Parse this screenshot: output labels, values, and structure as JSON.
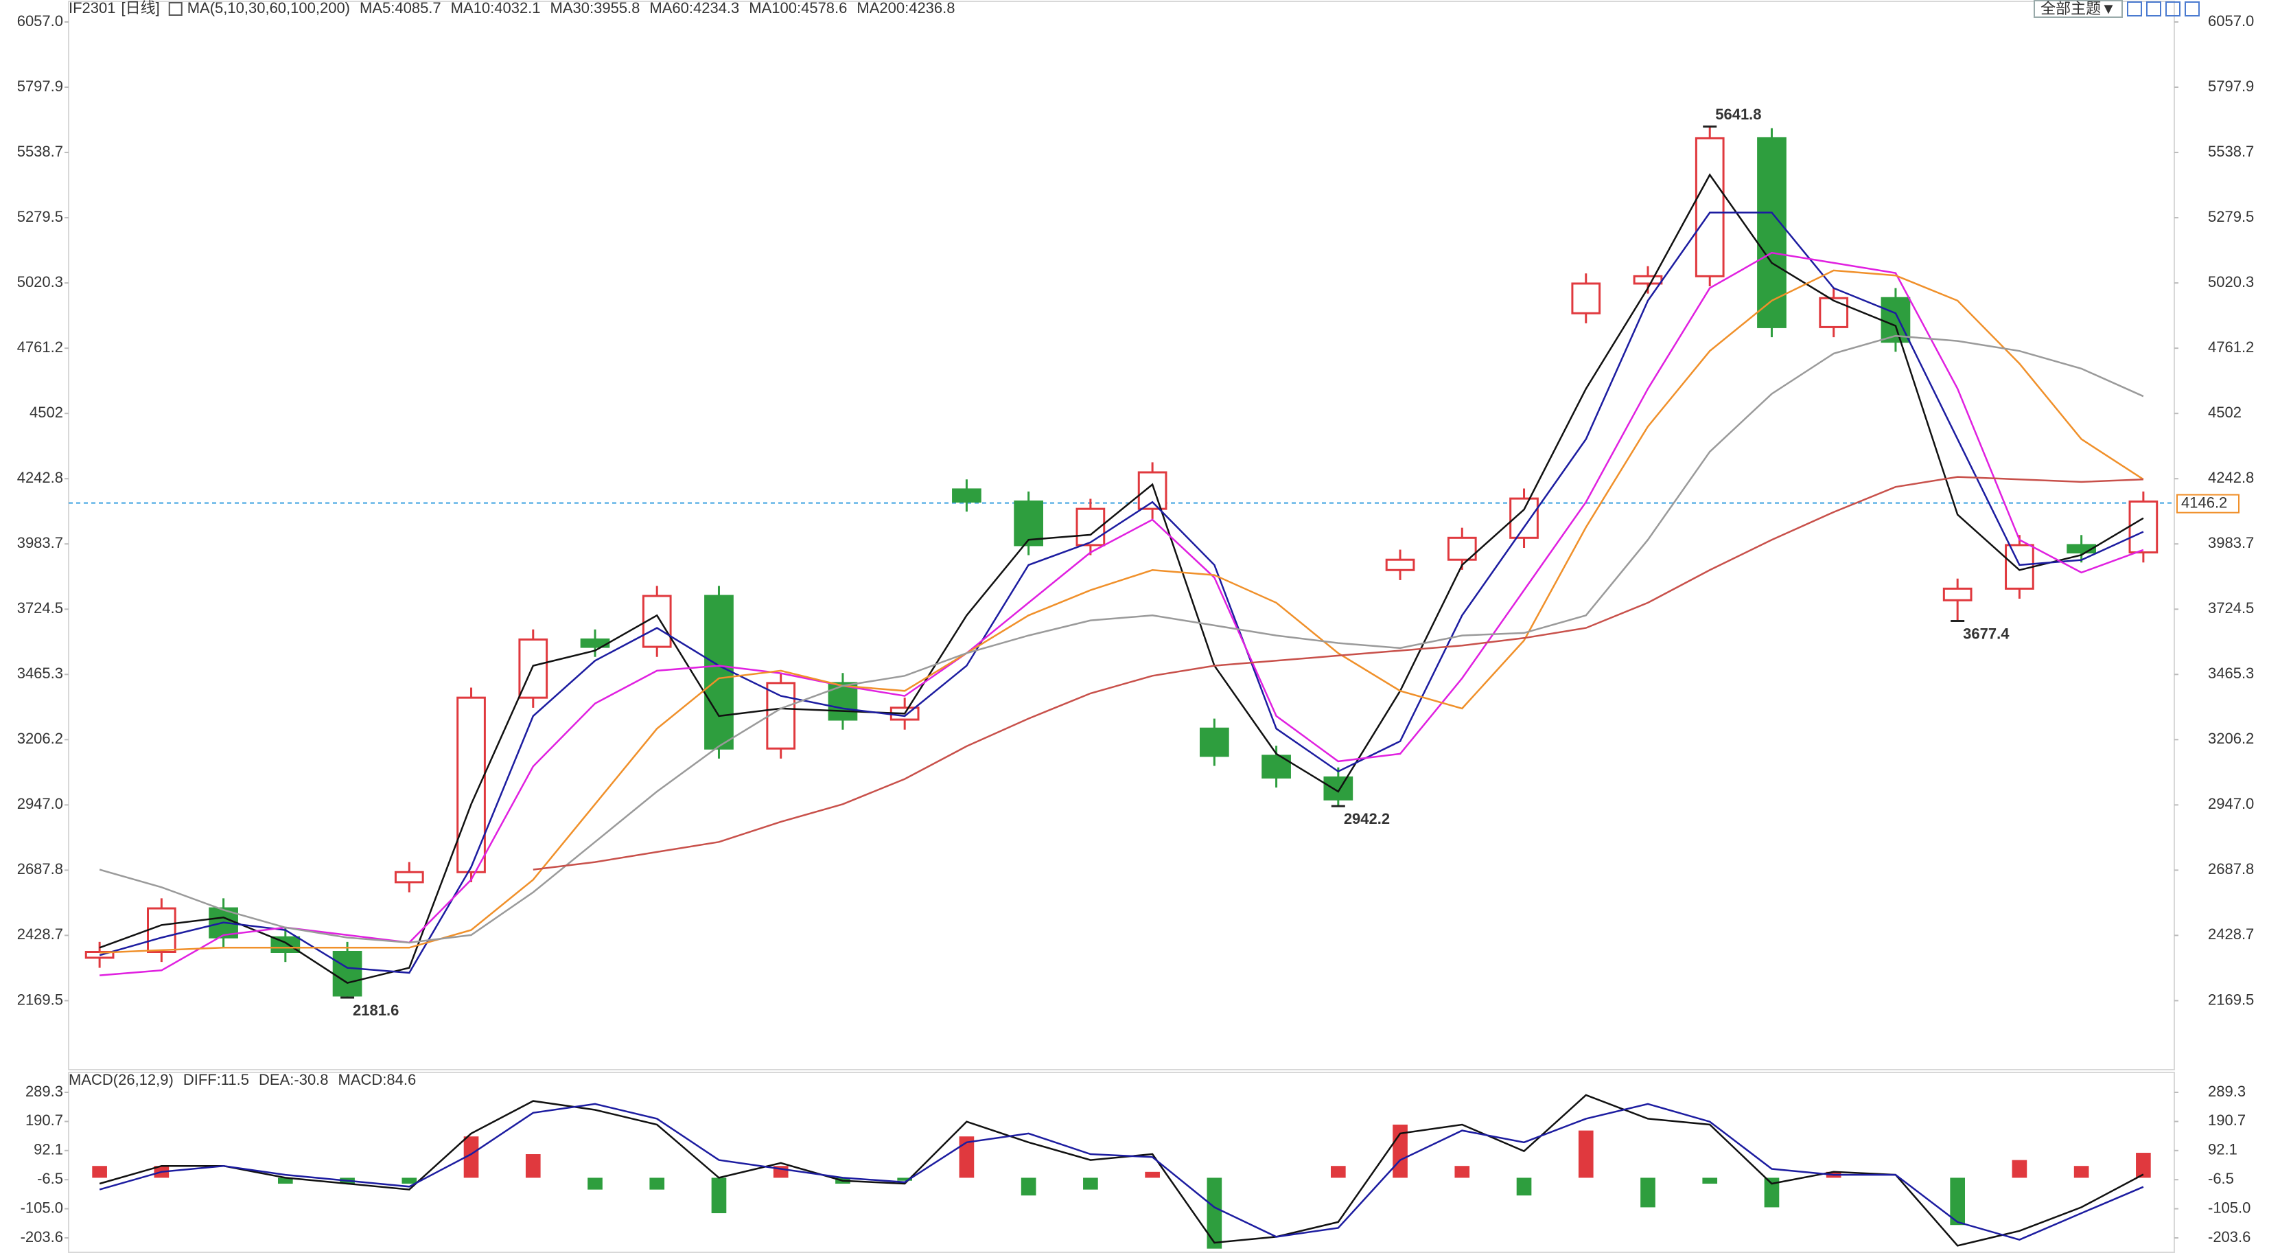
{
  "toolbar": {
    "theme_button": "全部主题▼"
  },
  "chart_data": [
    {
      "type": "candlestick",
      "title": "IF2301",
      "subtitle": "[日线]",
      "indicator": "MA(5,10,30,60,100,200)",
      "open": [
        2340,
        2363,
        2536,
        2421,
        2363,
        2640,
        2680,
        3373,
        3604,
        3575,
        3777,
        3171,
        3431,
        3286,
        4200,
        4152,
        3979,
        4123,
        3250,
        3142,
        3056,
        3880,
        3921,
        4008,
        4900,
        5018,
        5047,
        5595,
        4845,
        4960,
        3760,
        3806,
        3979,
        3950
      ],
      "high": [
        2403,
        2576,
        2576,
        2461,
        2403,
        2720,
        3413,
        3644,
        3644,
        3817,
        3817,
        3471,
        3471,
        3373,
        4240,
        4192,
        4163,
        4308,
        3290,
        3182,
        3096,
        3961,
        4048,
        4204,
        5058,
        5087,
        5641.8,
        5635,
        5000,
        5000,
        3846,
        4019,
        4019,
        4192
      ],
      "low": [
        2300,
        2323,
        2381,
        2323,
        2181.6,
        2600,
        2640,
        3333,
        3535,
        3535,
        3131,
        3131,
        3246,
        3246,
        4112,
        3939,
        3939,
        4083,
        3102,
        3016,
        2942.2,
        3840,
        3881,
        3968,
        4860,
        4978,
        5007,
        4805,
        4805,
        4747,
        3677.4,
        3766,
        3910,
        3910
      ],
      "close": [
        2363,
        2536,
        2421,
        2363,
        2190,
        2680,
        3373,
        3604,
        3575,
        3777,
        3171,
        3431,
        3286,
        3333,
        4152,
        3979,
        4123,
        4268,
        3142,
        3056,
        2969,
        3921,
        4008,
        4164,
        5018,
        5047,
        5595,
        4845,
        4960,
        4787,
        3806,
        3979,
        3950,
        4152
      ],
      "up_color": "#e0393e",
      "down_color": "#2e9e3e",
      "series": [
        {
          "name": "MA5:4085.7",
          "color": "#111111",
          "values": [
            2380,
            2470,
            2500,
            2400,
            2240,
            2300,
            2950,
            3500,
            3560,
            3700,
            3300,
            3330,
            3320,
            3310,
            3700,
            4000,
            4020,
            4220,
            3500,
            3150,
            3000,
            3400,
            3900,
            4120,
            4600,
            5000,
            5450,
            5100,
            4950,
            4850,
            4100,
            3880,
            3940,
            4086
          ]
        },
        {
          "name": "MA10:4032.1",
          "color": "#1c1ca0",
          "values": [
            2350,
            2420,
            2480,
            2450,
            2300,
            2280,
            2700,
            3300,
            3520,
            3650,
            3500,
            3380,
            3330,
            3300,
            3500,
            3900,
            3990,
            4150,
            3900,
            3250,
            3080,
            3200,
            3700,
            4050,
            4400,
            4950,
            5300,
            5300,
            5000,
            4900,
            4400,
            3900,
            3920,
            4032
          ]
        },
        {
          "name": "MA30:3955.8",
          "color": "#e020e0",
          "values": [
            2270,
            2290,
            2430,
            2460,
            2430,
            2400,
            2650,
            3100,
            3350,
            3480,
            3500,
            3470,
            3420,
            3380,
            3550,
            3750,
            3950,
            4080,
            3850,
            3300,
            3120,
            3150,
            3450,
            3800,
            4150,
            4600,
            5000,
            5140,
            5100,
            5060,
            4600,
            4000,
            3870,
            3960
          ]
        },
        {
          "name": "MA60:4234.3",
          "color": "#f0902a",
          "values": [
            2360,
            2370,
            2380,
            2380,
            2380,
            2380,
            2450,
            2650,
            2950,
            3250,
            3450,
            3480,
            3420,
            3400,
            3550,
            3700,
            3800,
            3880,
            3860,
            3750,
            3550,
            3400,
            3330,
            3600,
            4050,
            4450,
            4750,
            4950,
            5070,
            5050,
            4950,
            4700,
            4400,
            4240
          ]
        },
        {
          "name": "MA100:4578.6",
          "color": "#9a9a9a",
          "values": [
            2690,
            2620,
            2530,
            2460,
            2420,
            2400,
            2430,
            2600,
            2800,
            3000,
            3180,
            3330,
            3420,
            3460,
            3550,
            3620,
            3680,
            3700,
            3660,
            3620,
            3590,
            3570,
            3620,
            3630,
            3700,
            4000,
            4350,
            4580,
            4740,
            4810,
            4790,
            4750,
            4680,
            4570
          ]
        },
        {
          "name": "MA200:4236.8",
          "color": "#c8504a",
          "values": [
            null,
            null,
            null,
            null,
            null,
            null,
            null,
            2690,
            2720,
            2760,
            2800,
            2880,
            2950,
            3050,
            3180,
            3290,
            3390,
            3460,
            3500,
            3520,
            3540,
            3560,
            3580,
            3610,
            3650,
            3750,
            3880,
            4000,
            4110,
            4210,
            4250,
            4240,
            4230,
            4240
          ]
        }
      ],
      "ylim": [
        1898,
        6057.0
      ],
      "yticks": [
        {
          "value": 6057.0,
          "label": "6057.0"
        },
        5797.9,
        5538.7,
        5279.5,
        5020.3,
        4761.2,
        4502.0,
        4242.8,
        3983.7,
        3724.5,
        3465.3,
        3206.2,
        {
          "value": 2947.0,
          "label": "2947.0"
        },
        2687.8,
        2428.7,
        2169.5
      ],
      "annotations": [
        {
          "value": 5641.8,
          "label": "5641.8"
        },
        {
          "value": 2181.6,
          "label": "2181.6"
        },
        {
          "value": 2942.2,
          "label": "2942.2"
        },
        {
          "value": 3677.4,
          "label": "3677.4"
        }
      ],
      "last_price": 4146.2,
      "last_price_color": "#f0902a"
    },
    {
      "type": "macd",
      "title": "MACD(26,12,9)",
      "series": [
        {
          "name": "DIFF:11.5",
          "color": "#111111",
          "style": "line",
          "values": [
            -20,
            40,
            40,
            0,
            -20,
            -40,
            150,
            260,
            230,
            180,
            0,
            50,
            -10,
            -20,
            190,
            120,
            60,
            80,
            -220,
            -200,
            -150,
            150,
            180,
            90,
            280,
            200,
            180,
            -20,
            20,
            10,
            -230,
            -180,
            -100,
            11.5
          ]
        },
        {
          "name": "DEA:-30.8",
          "color": "#1c1ca0",
          "style": "line",
          "values": [
            -40,
            20,
            40,
            10,
            -10,
            -30,
            80,
            220,
            250,
            200,
            60,
            30,
            0,
            -15,
            120,
            150,
            80,
            70,
            -100,
            -200,
            -170,
            60,
            160,
            120,
            200,
            250,
            190,
            30,
            10,
            10,
            -150,
            -210,
            -120,
            -30.8
          ]
        },
        {
          "name": "MACD:84.6",
          "color": "#e020e0",
          "style": "bar",
          "values": [
            40,
            40,
            0,
            -20,
            -20,
            -20,
            140,
            80,
            -40,
            -40,
            -120,
            40,
            -20,
            -10,
            140,
            -60,
            -40,
            20,
            -240,
            0,
            40,
            180,
            40,
            -60,
            160,
            -100,
            -20,
            -100,
            20,
            0,
            -160,
            60,
            40,
            84.6
          ]
        }
      ],
      "up_color": "#e0393e",
      "down_color": "#2e9e3e",
      "ylim": [
        -247.8,
        342.8
      ],
      "yticks": [
        289.3,
        190.7,
        92.1,
        -6.5,
        {
          "value": -105.0,
          "label": "-105.0"
        },
        -203.6
      ]
    }
  ]
}
